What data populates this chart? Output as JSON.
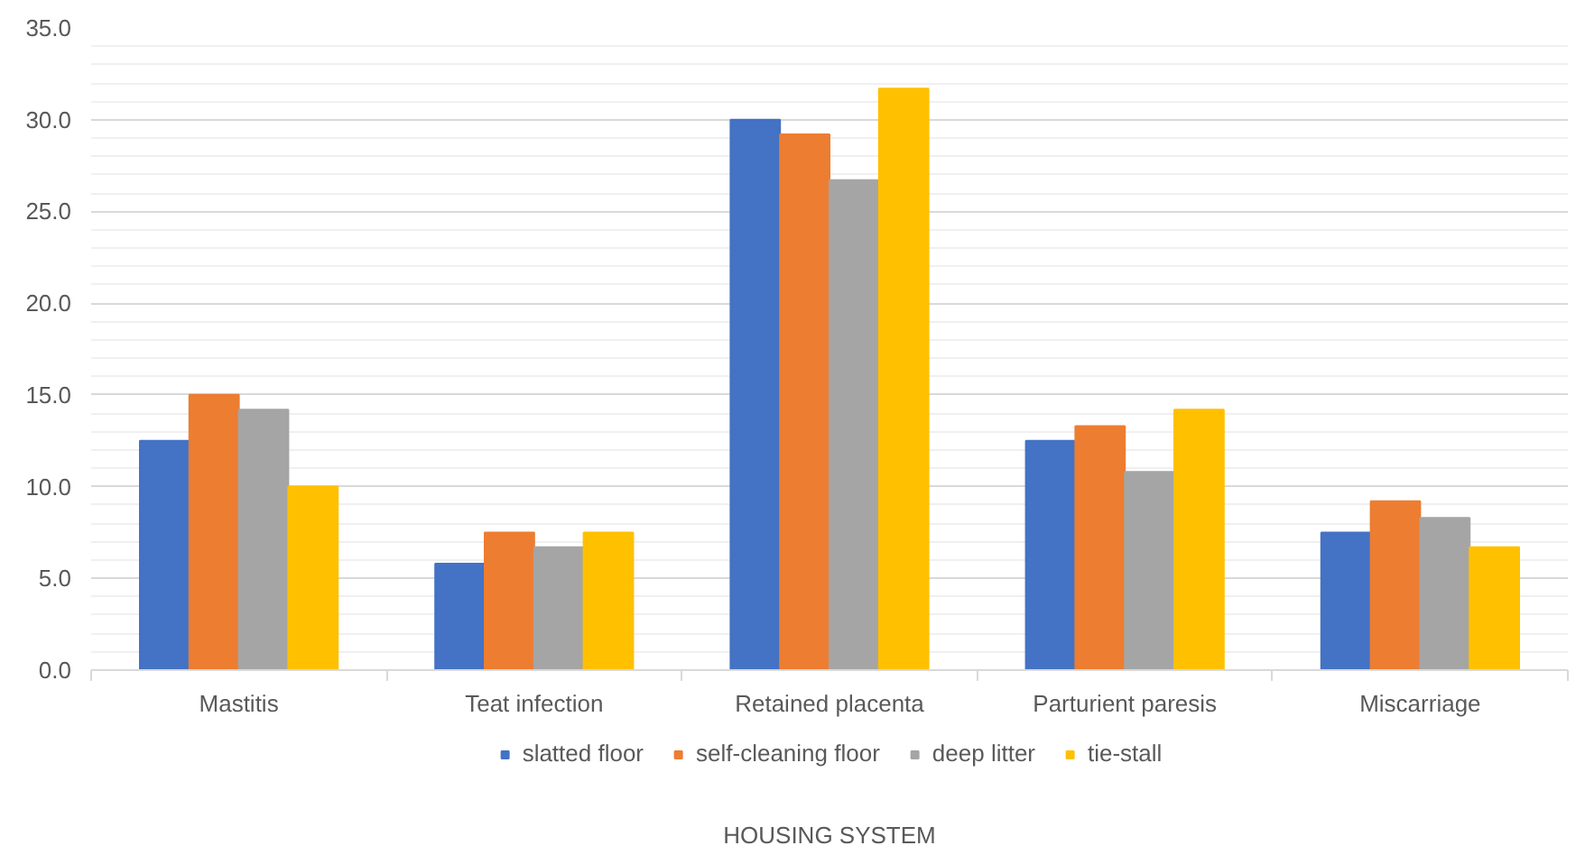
{
  "chart_data": {
    "type": "bar",
    "xlabel": "HOUSING SYSTEM",
    "categories": [
      "Mastitis",
      "Teat infection",
      "Retained placenta",
      "Parturient paresis",
      "Miscarriage"
    ],
    "series": [
      {
        "name": "slatted floor",
        "color": "#4472c4",
        "values": [
          12.5,
          5.8,
          30.0,
          12.5,
          7.5
        ]
      },
      {
        "name": "self-cleaning floor",
        "color": "#ed7d31",
        "values": [
          15.0,
          7.5,
          29.2,
          13.3,
          9.2
        ]
      },
      {
        "name": "deep litter",
        "color": "#a5a5a5",
        "values": [
          14.2,
          6.7,
          26.7,
          10.8,
          8.3
        ]
      },
      {
        "name": "tie-stall",
        "color": "#ffc000",
        "values": [
          10.0,
          7.5,
          31.7,
          14.2,
          6.7
        ]
      }
    ],
    "ylim": [
      0,
      35
    ],
    "yticks": [
      {
        "value": 0,
        "label": "0.0"
      },
      {
        "value": 1,
        "label": null
      },
      {
        "value": 2,
        "label": null
      },
      {
        "value": 3,
        "label": null
      },
      {
        "value": 4,
        "label": null
      },
      {
        "value": 5,
        "label": "5.0"
      },
      {
        "value": 6,
        "label": null
      },
      {
        "value": 7,
        "label": null
      },
      {
        "value": 8,
        "label": null
      },
      {
        "value": 9,
        "label": null
      },
      {
        "value": 10,
        "label": "10.0"
      },
      {
        "value": 11,
        "label": null
      },
      {
        "value": 12,
        "label": null
      },
      {
        "value": 13,
        "label": null
      },
      {
        "value": 14,
        "label": null
      },
      {
        "value": 15,
        "label": "15.0"
      },
      {
        "value": 16,
        "label": null
      },
      {
        "value": 17,
        "label": null
      },
      {
        "value": 18,
        "label": null
      },
      {
        "value": 19,
        "label": null
      },
      {
        "value": 20,
        "label": "20.0"
      },
      {
        "value": 21,
        "label": null
      },
      {
        "value": 22,
        "label": null
      },
      {
        "value": 23,
        "label": null
      },
      {
        "value": 24,
        "label": null
      },
      {
        "value": 25,
        "label": "25.0"
      },
      {
        "value": 26,
        "label": null
      },
      {
        "value": 27,
        "label": null
      },
      {
        "value": 28,
        "label": null
      },
      {
        "value": 29,
        "label": null
      },
      {
        "value": 30,
        "label": "30.0"
      },
      {
        "value": 31,
        "label": null
      },
      {
        "value": 32,
        "label": null
      },
      {
        "value": 33,
        "label": null
      },
      {
        "value": 34,
        "label": null
      },
      {
        "value": 35,
        "label": "35.0"
      }
    ],
    "grid": "y",
    "legend": "bottom"
  }
}
